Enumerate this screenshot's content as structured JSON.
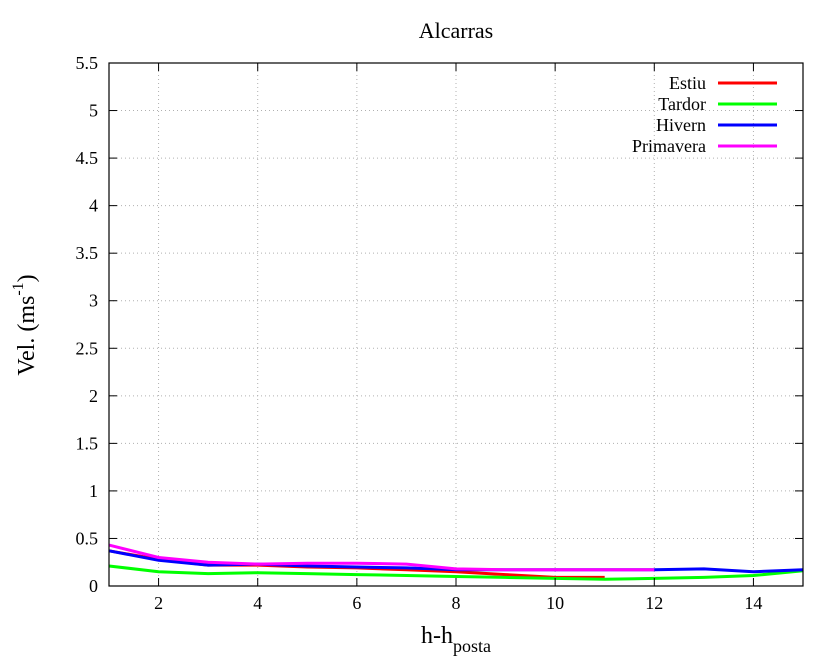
{
  "chart_data": {
    "type": "line",
    "title": "Alcarras",
    "xlabel_main": "h-h",
    "xlabel_sub": "posta",
    "ylabel_main": "Vel. (ms",
    "ylabel_sup": "-1",
    "ylabel_close": ")",
    "xlim": [
      1,
      15
    ],
    "ylim": [
      0,
      5.5
    ],
    "xticks": [
      2,
      4,
      6,
      8,
      10,
      12,
      14
    ],
    "yticks": [
      "0",
      "0.5",
      "1",
      "1.5",
      "2",
      "2.5",
      "3",
      "3.5",
      "4",
      "4.5",
      "5",
      "5.5"
    ],
    "grid": true,
    "legend_position": "top-right",
    "series": [
      {
        "name": "Estiu",
        "color": "#ff0000",
        "x": [
          1,
          2,
          3,
          4,
          5,
          6,
          7,
          8,
          9,
          10,
          11
        ],
        "y": [
          0.37,
          0.28,
          0.22,
          0.22,
          0.2,
          0.19,
          0.17,
          0.15,
          0.12,
          0.09,
          0.09
        ]
      },
      {
        "name": "Tardor",
        "color": "#00ff00",
        "x": [
          1,
          2,
          3,
          4,
          5,
          6,
          7,
          8,
          9,
          10,
          11,
          12,
          13,
          14,
          15
        ],
        "y": [
          0.21,
          0.15,
          0.13,
          0.14,
          0.13,
          0.12,
          0.11,
          0.1,
          0.09,
          0.08,
          0.07,
          0.08,
          0.09,
          0.11,
          0.16
        ]
      },
      {
        "name": "Hivern",
        "color": "#0000ff",
        "x": [
          1,
          2,
          3,
          4,
          5,
          6,
          7,
          8,
          9,
          10,
          11,
          12,
          13,
          14,
          15
        ],
        "y": [
          0.37,
          0.27,
          0.22,
          0.23,
          0.21,
          0.2,
          0.19,
          0.17,
          0.17,
          0.17,
          0.17,
          0.17,
          0.18,
          0.15,
          0.17
        ]
      },
      {
        "name": "Primavera",
        "color": "#ff00ff",
        "x": [
          1,
          2,
          3,
          4,
          5,
          6,
          7,
          8,
          9,
          10,
          11,
          12
        ],
        "y": [
          0.43,
          0.3,
          0.25,
          0.23,
          0.24,
          0.24,
          0.23,
          0.18,
          0.17,
          0.17,
          0.17,
          0.17
        ]
      }
    ]
  }
}
